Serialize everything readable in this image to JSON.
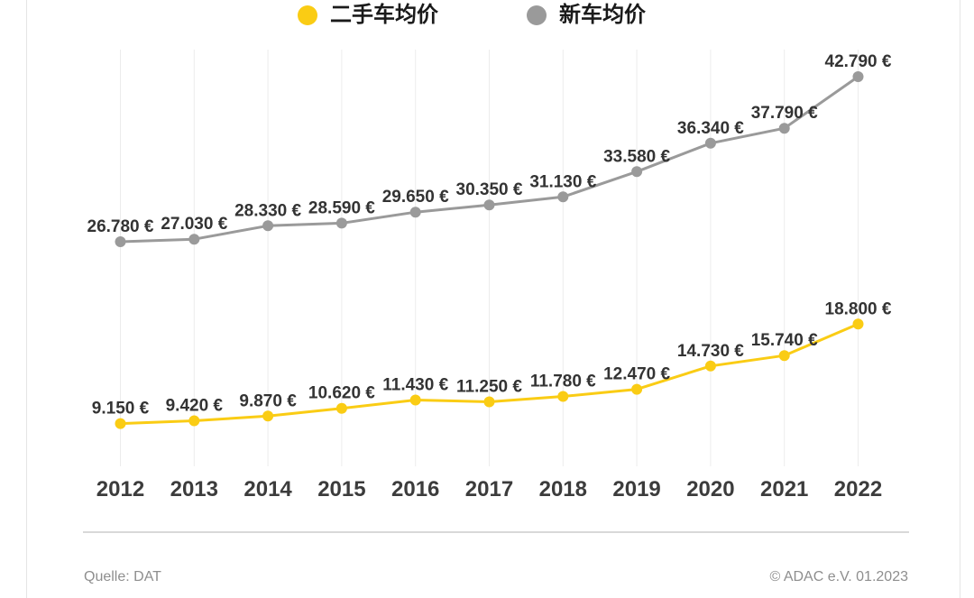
{
  "legend": [
    {
      "label": "二手车均价",
      "color": "#FACC14"
    },
    {
      "label": "新车均价",
      "color": "#9A9A9A"
    }
  ],
  "footer": {
    "source": "Quelle: DAT",
    "copyright": "© ADAC e.V. 01.2023"
  },
  "colors": {
    "used_car": "#FACC14",
    "new_car": "#9A9A9A",
    "grid": "#ececec",
    "data_label": "#333333",
    "axis_label": "#3c3c3c"
  },
  "chart_data": {
    "type": "line",
    "x": [
      "2012",
      "2013",
      "2014",
      "2015",
      "2016",
      "2017",
      "2018",
      "2019",
      "2020",
      "2021",
      "2022"
    ],
    "series": [
      {
        "name": "二手车均价",
        "color": "#FACC14",
        "values": [
          9150,
          9420,
          9870,
          10620,
          11430,
          11250,
          11780,
          12470,
          14730,
          15740,
          18800
        ],
        "labels": [
          "9.150 €",
          "9.420 €",
          "9.870 €",
          "10.620 €",
          "11.430 €",
          "11.250 €",
          "11.780 €",
          "12.470 €",
          "14.730 €",
          "15.740 €",
          "18.800 €"
        ]
      },
      {
        "name": "新车均价",
        "color": "#9A9A9A",
        "values": [
          26780,
          27030,
          28330,
          28590,
          29650,
          30350,
          31130,
          33580,
          36340,
          37790,
          42790
        ],
        "labels": [
          "26.780 €",
          "27.030 €",
          "28.330 €",
          "28.590 €",
          "29.650 €",
          "30.350 €",
          "31.130 €",
          "33.580 €",
          "36.340 €",
          "37.790 €",
          "42.790 €"
        ]
      }
    ],
    "ylim": [
      0,
      44500
    ],
    "grid": "vertical-only",
    "legend_position": "top",
    "data_labels_visible": true,
    "yaxis_visible": false
  }
}
